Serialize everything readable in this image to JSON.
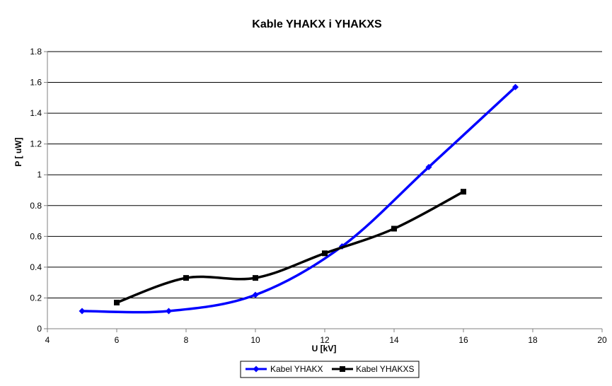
{
  "chart_data": {
    "type": "line",
    "title": "Kable YHAKX i YHAKXS",
    "xlabel": "U  [kV]",
    "ylabel": "P  [  uW]",
    "xlim": [
      4,
      20
    ],
    "ylim": [
      0,
      1.8
    ],
    "xticks": [
      "4",
      "6",
      "8",
      "10",
      "12",
      "14",
      "16",
      "18",
      "20"
    ],
    "yticks": [
      "0",
      "0.2",
      "0.4",
      "0.6",
      "0.8",
      "1",
      "1.2",
      "1.4",
      "1.6",
      "1.8"
    ],
    "grid": true,
    "legend_position": "bottom",
    "smooth": true,
    "series": [
      {
        "name": "Kabel YHAKX",
        "color": "#0000ff",
        "marker": "diamond",
        "points": [
          [
            5,
            0.115
          ],
          [
            7.5,
            0.115
          ],
          [
            10,
            0.22
          ],
          [
            12.5,
            0.535
          ],
          [
            15,
            1.05
          ],
          [
            17.5,
            1.57
          ]
        ]
      },
      {
        "name": "Kabel YHAKXS",
        "color": "#000000",
        "marker": "square",
        "points": [
          [
            6,
            0.17
          ],
          [
            8,
            0.33
          ],
          [
            10,
            0.33
          ],
          [
            12,
            0.49
          ],
          [
            14,
            0.65
          ],
          [
            16,
            0.89
          ]
        ]
      }
    ]
  }
}
